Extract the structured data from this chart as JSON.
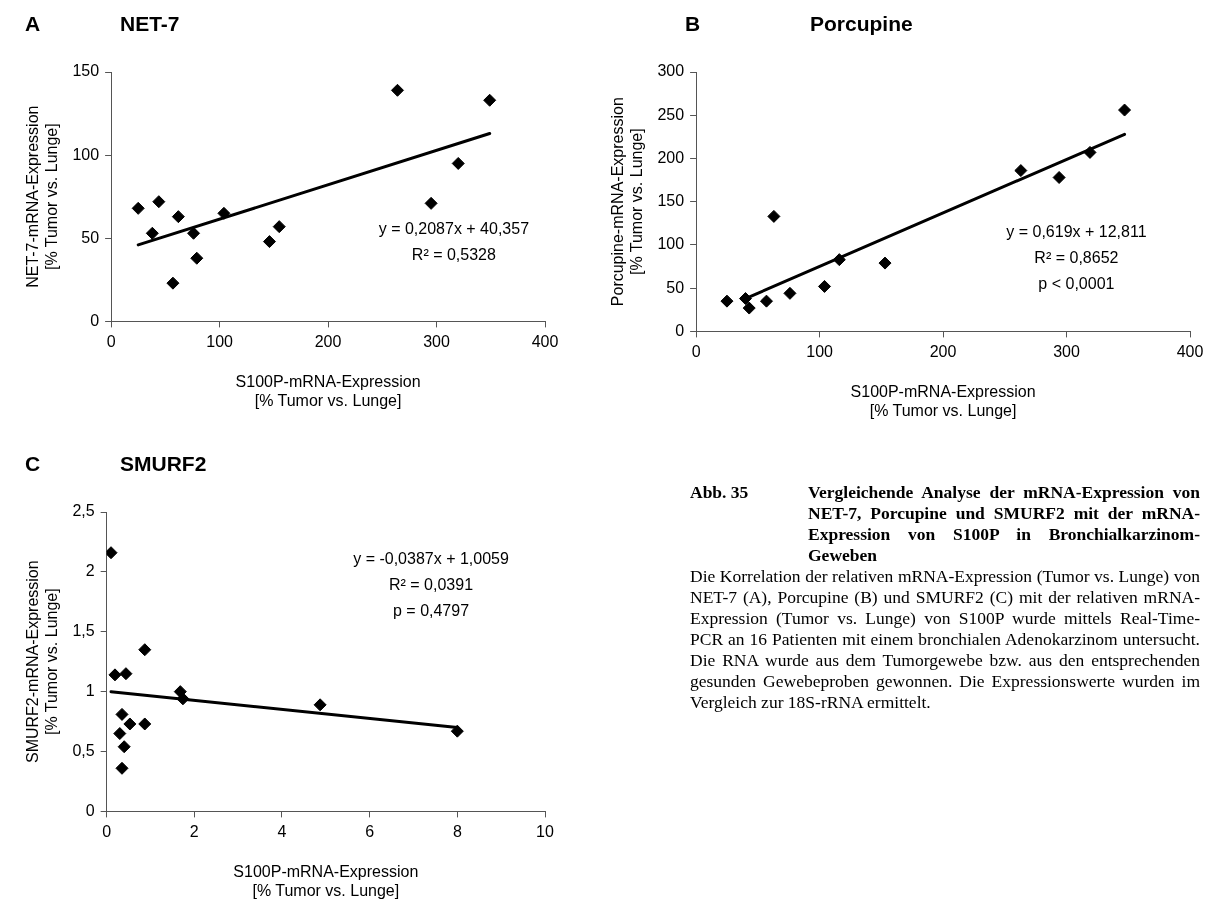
{
  "chart_data": [
    {
      "type": "scatter",
      "title": "NET-7",
      "xlabel": "S100P-mRNA-Expression\n[% Tumor vs. Lunge]",
      "ylabel": "NET-7-mRNA-Expression\n[% Tumor vs. Lunge]",
      "annotations": [
        "A",
        "y = 0,2087x + 40,357",
        "R² = 0,5328"
      ],
      "xlim": [
        0,
        400
      ],
      "xticks": [
        0,
        100,
        200,
        300,
        400
      ],
      "ylim": [
        0,
        150
      ],
      "yticks": [
        0,
        50,
        100,
        150
      ],
      "series": [
        {
          "color": "#000000",
          "marker": "diamond",
          "x": [
            25,
            38,
            44,
            57,
            62,
            76,
            79,
            104,
            146,
            155,
            264,
            295,
            320,
            349
          ],
          "values": [
            68,
            53,
            72,
            23,
            63,
            53,
            38,
            65,
            48,
            57,
            139,
            71,
            95,
            133
          ]
        },
        {
          "type": "line",
          "color": "#000000",
          "marker": "none",
          "x": [
            25,
            349
          ],
          "values": [
            46,
            113
          ]
        }
      ]
    },
    {
      "type": "scatter",
      "title": "Porcupine",
      "xlabel": "S100P-mRNA-Expression\n[% Tumor vs. Lunge]",
      "ylabel": "Porcupine-mRNA-Expression\n[% Tumor vs. Lunge]",
      "annotations": [
        "B",
        "y = 0,619x + 12,811",
        "R² = 0,8652",
        "p < 0,0001"
      ],
      "xlim": [
        0,
        400
      ],
      "xticks": [
        0,
        100,
        200,
        300,
        400
      ],
      "ylim": [
        0,
        300
      ],
      "yticks": [
        0,
        50,
        100,
        150,
        200,
        250,
        300
      ],
      "series": [
        {
          "color": "#000000",
          "marker": "diamond",
          "x": [
            25,
            40,
            43,
            57,
            63,
            76,
            104,
            116,
            153,
            263,
            294,
            319,
            347
          ],
          "values": [
            35,
            38,
            27,
            35,
            133,
            44,
            52,
            83,
            79,
            186,
            178,
            207,
            256
          ]
        },
        {
          "type": "line",
          "color": "#000000",
          "marker": "none",
          "x": [
            40,
            347
          ],
          "values": [
            38,
            228
          ]
        }
      ]
    },
    {
      "type": "scatter",
      "title": "SMURF2",
      "xlabel": "S100P-mRNA-Expression\n[% Tumor vs. Lunge]",
      "ylabel": "SMURF2-mRNA-Expression\n[% Tumor vs. Lunge]",
      "annotations": [
        "C",
        "y = -0,0387x + 1,0059",
        "R² = 0,0391",
        "p = 0,4797"
      ],
      "xlim": [
        0,
        10
      ],
      "xticks": [
        0,
        2,
        4,
        6,
        8,
        10
      ],
      "ylim": [
        0,
        2.5
      ],
      "yticks": [
        0,
        {
          "value": 0.5,
          "label": "0,5"
        },
        1,
        {
          "value": 1.5,
          "label": "1,5"
        },
        2,
        {
          "value": 2.5,
          "label": "2,5"
        }
      ],
      "series": [
        {
          "color": "#000000",
          "marker": "diamond",
          "x": [
            0.1,
            0.19,
            0.44,
            0.87,
            0.35,
            0.3,
            0.4,
            0.35,
            0.53,
            0.87,
            1.68,
            1.74,
            4.87,
            8.0
          ],
          "values": [
            2.16,
            1.14,
            1.15,
            1.35,
            0.81,
            0.65,
            0.54,
            0.36,
            0.73,
            0.73,
            1.0,
            0.94,
            0.89,
            0.67
          ]
        },
        {
          "type": "line",
          "color": "#000000",
          "marker": "none",
          "x": [
            0.1,
            8.0
          ],
          "values": [
            1.0,
            0.7
          ]
        }
      ]
    },
    {
      "type": "other",
      "title": "Abb. 35",
      "subtitle": "Vergleichende Analyse der mRNA-Expression von NET-7, Porcupine und SMURF2 mit der mRNA-Expression von S100P in Bronchialkarzinom-Geweben",
      "annotations": [
        "Die Korrelation der relativen mRNA-Expression (Tumor vs. Lunge) von NET-7 (A), Porcupine (B) und SMURF2 (C) mit der relativen mRNA-Expression (Tumor vs. Lunge) von S100P wurde mittels Real-Time-PCR an 16 Patienten mit einem bronchialen Adenokarzinom untersucht. Die RNA wurde aus dem Tumorgewebe bzw. aus den entsprechenden gesunden Gewebeproben gewonnen. Die Expressionswerte wurden im Vergleich zur 18S-rRNA ermittelt."
      ]
    }
  ]
}
